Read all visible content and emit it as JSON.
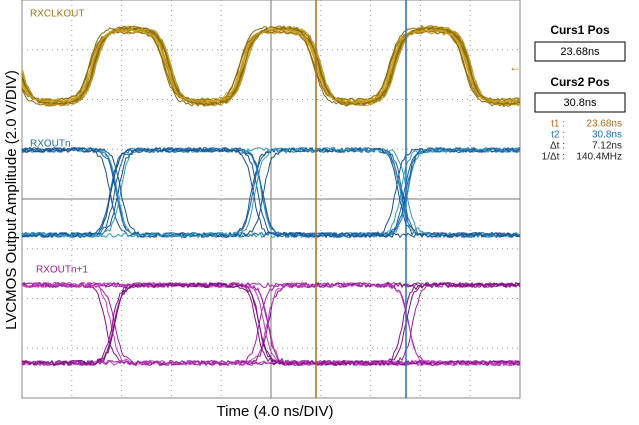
{
  "x_label": "Time (4.0 ns/DIV)",
  "y_label": "LVCMOS Output Amplitude (2.0 V/DIV)",
  "channels": [
    "RXCLKOUT",
    "RXOUTn",
    "RXOUTn+1"
  ],
  "panel": {
    "curs1_title": "Curs1 Pos",
    "curs1_value": "23.68ns",
    "curs2_title": "Curs2 Pos",
    "curs2_value": "30.8ns",
    "readout": [
      [
        "t1 :",
        "23.68ns"
      ],
      [
        "t2 :",
        "30.8ns"
      ],
      [
        "Δt :",
        "7.12ns"
      ],
      [
        "1/Δt :",
        "140.4MHz"
      ]
    ]
  }
}
